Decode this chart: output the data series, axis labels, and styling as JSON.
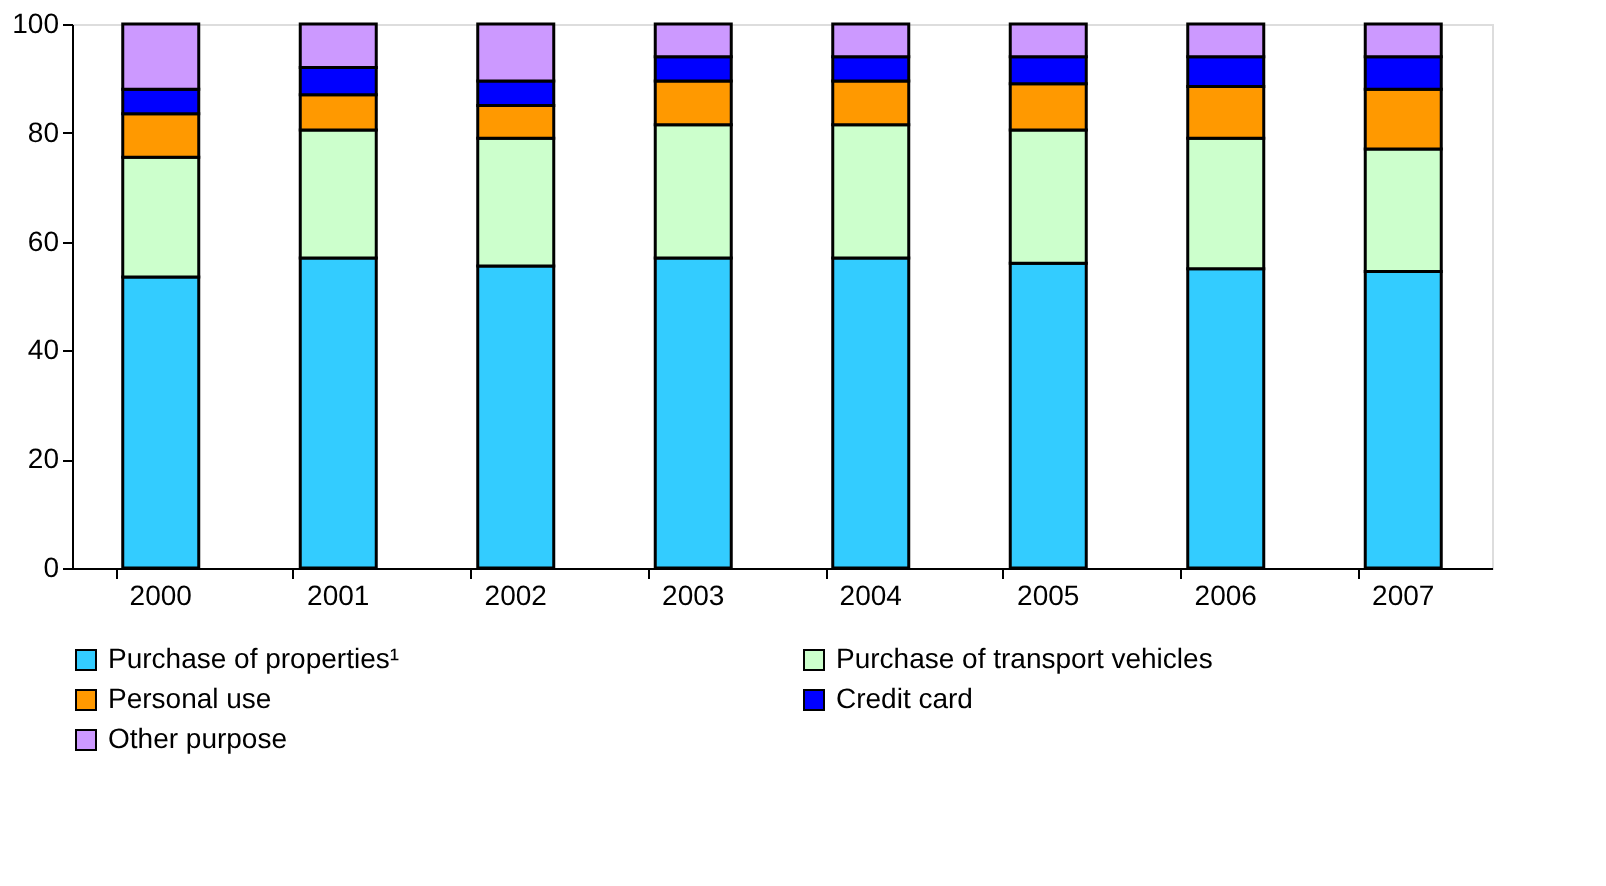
{
  "chart_data": {
    "type": "bar",
    "stacked": true,
    "categories": [
      "2000",
      "2001",
      "2002",
      "2003",
      "2004",
      "2005",
      "2006",
      "2007"
    ],
    "series": [
      {
        "name": "Purchase of properties¹",
        "color": "#33ccff",
        "values": [
          53.5,
          57,
          55.5,
          57,
          57,
          56,
          55,
          54.5
        ]
      },
      {
        "name": "Purchase of transport vehicles",
        "color": "#ccffcc",
        "values": [
          22,
          23.5,
          23.5,
          24.5,
          24.5,
          24.5,
          24,
          22.5
        ]
      },
      {
        "name": "Personal use",
        "color": "#ff9900",
        "values": [
          8,
          6.5,
          6,
          8,
          8,
          8.5,
          9.5,
          11
        ]
      },
      {
        "name": "Credit card",
        "color": "#0000ff",
        "values": [
          4.5,
          5,
          4.5,
          4.5,
          4.5,
          5,
          5.5,
          6
        ]
      },
      {
        "name": "Other purpose",
        "color": "#cc99ff",
        "values": [
          12,
          8,
          10.5,
          6,
          6,
          6,
          6,
          6
        ]
      }
    ],
    "ylim": [
      0,
      100
    ],
    "yticks": [
      0,
      20,
      40,
      60,
      80,
      100
    ],
    "grid": false,
    "legend": "bottom"
  }
}
